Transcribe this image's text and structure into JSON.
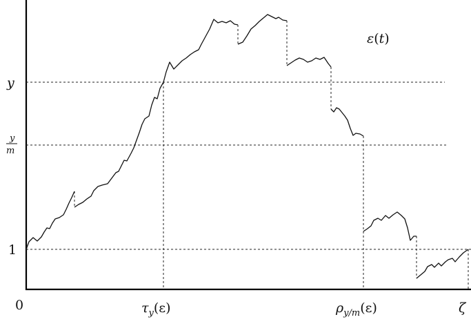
{
  "labels": {
    "curve": "ε(t)",
    "y_level": "y",
    "y_over_m_num": "y",
    "y_over_m_den": "m",
    "one_level": "1",
    "origin": "0",
    "tau_main": "τ",
    "tau_sub": "y",
    "tau_arg": "(ε)",
    "rho_main": "ρ",
    "rho_sub": "y/m",
    "rho_arg": "(ε)",
    "zeta": "ζ"
  }
}
